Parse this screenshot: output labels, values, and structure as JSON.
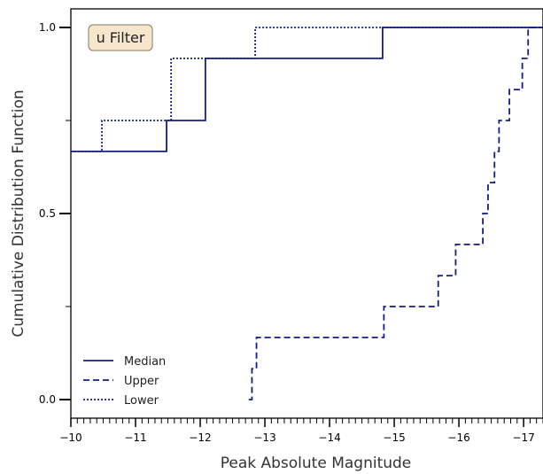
{
  "chart_data": {
    "type": "line",
    "subtype": "step-cdf",
    "annotation": "u Filter",
    "xlabel": "Peak Absolute Magnitude",
    "ylabel": "Cumulative Distribution Function",
    "xlim": [
      -10,
      -17.3
    ],
    "ylim": [
      0,
      1
    ],
    "x_inverted": true,
    "x_ticks": [
      -10,
      -11,
      -12,
      -13,
      -14,
      -15,
      -16,
      -17
    ],
    "x_tick_labels": [
      "−10",
      "−11",
      "−12",
      "−13",
      "−14",
      "−15",
      "−16",
      "−17"
    ],
    "y_ticks": [
      0,
      0.5,
      1
    ],
    "y_tick_labels": [
      "0.0",
      "0.5",
      "1.0"
    ],
    "grid": false,
    "legend_position": "lower-left",
    "color": "#141f82",
    "series": [
      {
        "name": "Median",
        "style": "solid",
        "x": [
          -10,
          -11.48,
          -12.08,
          -14.82,
          -17.3
        ],
        "y": [
          0.667,
          0.75,
          0.917,
          1.0,
          1.0
        ]
      },
      {
        "name": "Upper",
        "style": "dashed",
        "x": [
          -12.75,
          -12.8,
          -12.87,
          -14.84,
          -15.68,
          -15.95,
          -16.37,
          -16.45,
          -16.55,
          -16.62,
          -16.78,
          -16.98,
          -17.07,
          -17.25,
          -17.3
        ],
        "y": [
          0.0,
          0.083,
          0.167,
          0.25,
          0.333,
          0.417,
          0.5,
          0.583,
          0.667,
          0.75,
          0.833,
          0.917,
          1.0,
          1.0,
          1.0
        ]
      },
      {
        "name": "Lower",
        "style": "dotted",
        "x": [
          -10,
          -10.48,
          -11.55,
          -12.85,
          -17.3
        ],
        "y": [
          0.667,
          0.75,
          0.917,
          1.0,
          1.0
        ]
      }
    ]
  }
}
